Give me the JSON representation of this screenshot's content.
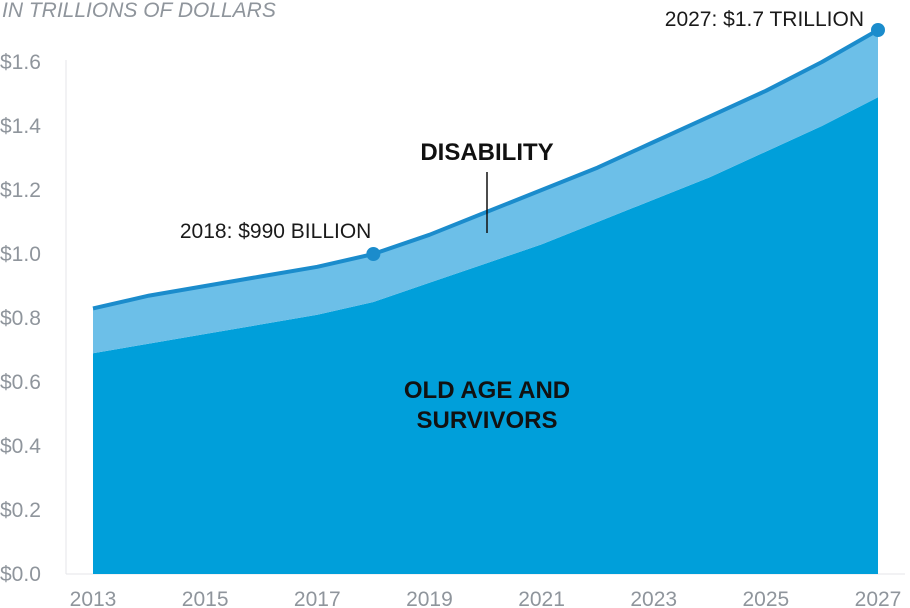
{
  "chart_data": {
    "type": "area",
    "subtitle": "IN TRILLIONS OF DOLLARS",
    "x": [
      2013,
      2014,
      2015,
      2016,
      2017,
      2018,
      2019,
      2020,
      2021,
      2022,
      2023,
      2024,
      2025,
      2026,
      2027
    ],
    "x_tick_labels": [
      "2013",
      "2015",
      "2017",
      "2019",
      "2021",
      "2023",
      "2025",
      "2027"
    ],
    "y_tick_labels": [
      "$0.0",
      "$0.2",
      "$0.4",
      "$0.6",
      "$0.8",
      "$1.0",
      "$1.2",
      "$1.4",
      "$1.6"
    ],
    "ylim": [
      0,
      1.7
    ],
    "stacked": true,
    "series": [
      {
        "name": "OLD AGE AND SURVIVORS",
        "label_lines": [
          "OLD AGE AND",
          "SURVIVORS"
        ],
        "color": "#009fda",
        "values": [
          0.69,
          0.72,
          0.75,
          0.78,
          0.81,
          0.85,
          0.91,
          0.97,
          1.03,
          1.1,
          1.17,
          1.24,
          1.32,
          1.4,
          1.49
        ]
      },
      {
        "name": "DISABILITY",
        "label_lines": [
          "DISABILITY"
        ],
        "color": "#6cbfe8",
        "values": [
          0.14,
          0.15,
          0.15,
          0.15,
          0.15,
          0.15,
          0.15,
          0.16,
          0.17,
          0.17,
          0.18,
          0.19,
          0.19,
          0.2,
          0.21
        ]
      }
    ],
    "total_line_color": "#1b8ccc",
    "annotations": [
      {
        "x": 2018,
        "y": 1.0,
        "text": "2018: $990 BILLION"
      },
      {
        "x": 2027,
        "y": 1.7,
        "text": "2027: $1.7 TRILLION"
      }
    ],
    "grid": false,
    "legend": "none"
  }
}
